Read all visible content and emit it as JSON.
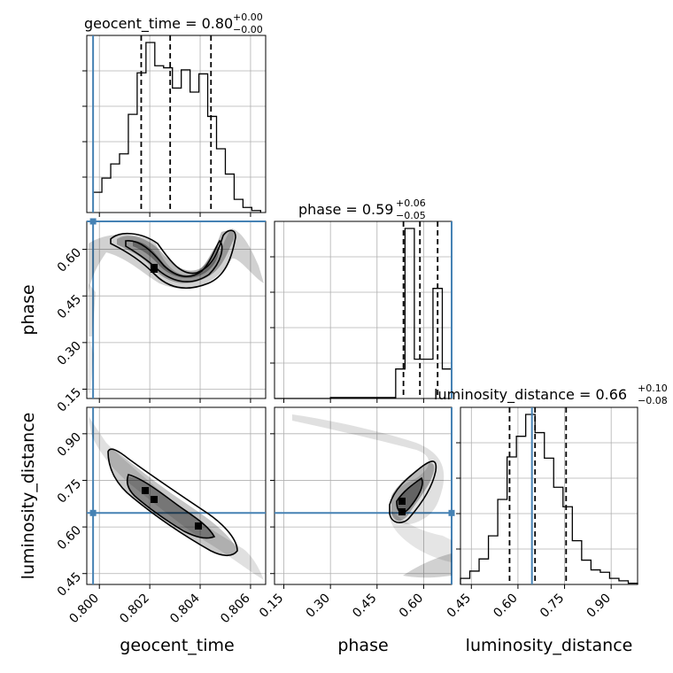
{
  "colors": {
    "truth": "#4682b4",
    "hist": "#000000",
    "grid": "#b0b0b0",
    "scatter": "#000000"
  },
  "titles": {
    "geocent_time": {
      "label": "geocent_time = 0.80",
      "sup": "+0.00",
      "sub": "−0.00"
    },
    "phase": {
      "label": "phase = 0.59",
      "sup": "+0.06",
      "sub": "−0.05"
    },
    "luminosity_distance": {
      "label": "luminosity_distance = 0.66",
      "sup": "+0.10",
      "sub": "−0.08"
    }
  },
  "axis_labels": {
    "x0": "geocent_time",
    "x1": "phase",
    "x2": "luminosity_distance",
    "y1": "phase",
    "y2": "luminosity_distance"
  },
  "chart_data": {
    "type": "corner",
    "parameters": [
      "geocent_time",
      "phase",
      "luminosity_distance"
    ],
    "ranges": {
      "geocent_time": [
        0.7995,
        0.8066
      ],
      "phase": [
        0.12,
        0.69
      ],
      "luminosity_distance": [
        0.415,
        0.985
      ]
    },
    "ticks": {
      "geocent_time": [
        0.8,
        0.802,
        0.804,
        0.806
      ],
      "phase": [
        0.15,
        0.3,
        0.45,
        0.6
      ],
      "luminosity_distance": [
        0.45,
        0.6,
        0.75,
        0.9
      ]
    },
    "tick_labels": {
      "geocent_time": [
        "0.800",
        "0.802",
        "0.804",
        "0.806"
      ],
      "phase": [
        "0.15",
        "0.30",
        "0.45",
        "0.60"
      ],
      "luminosity_distance": [
        "0.45",
        "0.60",
        "0.75",
        "0.90"
      ]
    },
    "truths": {
      "geocent_time": 0.79975,
      "phase": 0.69,
      "luminosity_distance": 0.645
    },
    "quantiles": {
      "geocent_time": [
        0.80166,
        0.80281,
        0.80443
      ],
      "phase": [
        0.535,
        0.588,
        0.645
      ],
      "luminosity_distance": [
        0.573,
        0.655,
        0.755
      ]
    },
    "histograms": {
      "geocent_time": {
        "edges": [
          0.79975,
          0.8001,
          0.80045,
          0.8008,
          0.80115,
          0.8015,
          0.80185,
          0.8022,
          0.80255,
          0.8029,
          0.80325,
          0.8036,
          0.80395,
          0.8043,
          0.80465,
          0.805,
          0.80535,
          0.8057,
          0.80605,
          0.8064
        ],
        "counts": [
          20,
          34,
          48,
          58,
          97,
          138,
          168,
          145,
          143,
          123,
          141,
          119,
          137,
          95,
          63,
          38,
          13,
          5,
          2
        ]
      },
      "phase": {
        "edges": [
          0.12,
          0.15,
          0.18,
          0.21,
          0.24,
          0.27,
          0.3,
          0.33,
          0.36,
          0.39,
          0.42,
          0.45,
          0.48,
          0.51,
          0.54,
          0.57,
          0.6,
          0.63,
          0.66,
          0.69
        ],
        "counts": [
          0,
          0,
          0,
          0,
          0,
          0,
          1,
          1,
          1,
          1,
          1,
          1,
          1,
          30,
          173,
          40,
          40,
          112,
          30
        ]
      },
      "luminosity_distance": {
        "edges": [
          0.415,
          0.445,
          0.475,
          0.505,
          0.535,
          0.565,
          0.595,
          0.625,
          0.655,
          0.685,
          0.715,
          0.745,
          0.775,
          0.805,
          0.835,
          0.865,
          0.895,
          0.925,
          0.955,
          0.985
        ],
        "counts": [
          5,
          11,
          21,
          40,
          70,
          105,
          122,
          140,
          125,
          104,
          80,
          64,
          36,
          20,
          12,
          10,
          5,
          3,
          1
        ]
      }
    },
    "density_blocks": {
      "phase_vs_geocent_time": [
        [
          0.8022,
          0.545
        ]
      ],
      "luminosity_distance_vs_geocent_time": [
        [
          0.8018,
          0.71
        ],
        [
          0.8021,
          0.68
        ],
        [
          0.8042,
          0.6
        ]
      ],
      "luminosity_distance_vs_phase": [
        [
          0.545,
          0.67
        ],
        [
          0.545,
          0.645
        ]
      ]
    }
  }
}
